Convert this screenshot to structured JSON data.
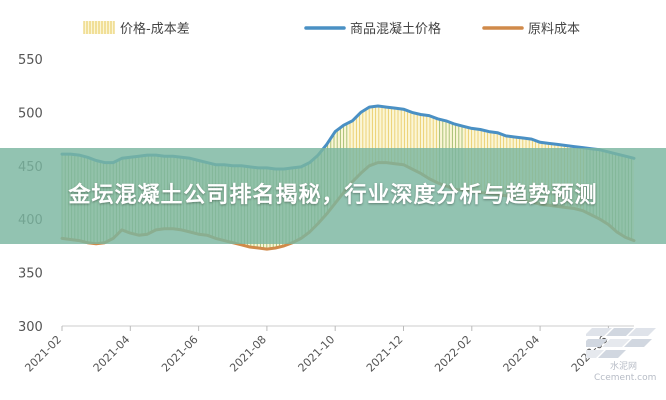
{
  "banner": {
    "title": "金坛混凝土公司排名揭秘，行业深度分析与趋势预测"
  },
  "watermark": {
    "line1": "水泥网",
    "line2": "Ccement.com"
  },
  "chart_data": {
    "type": "line",
    "title": "",
    "xlabel": "",
    "ylabel": "",
    "ylim": [
      300,
      550
    ],
    "yticks": [
      300,
      350,
      400,
      450,
      500,
      550
    ],
    "grid": false,
    "legend_position": "top",
    "x_tick_labels": [
      "2021-02",
      "2021-04",
      "2021-06",
      "2021-08",
      "2021-10",
      "2021-12",
      "2022-02",
      "2022-04",
      "2022-06"
    ],
    "x_tick_positions": [
      0,
      8,
      16,
      24,
      32,
      40,
      48,
      56,
      64
    ],
    "colors": {
      "concrete": "#4a90c4",
      "raw": "#d08a4a",
      "spread_fill": "#fbf6d6",
      "spread_hatch_low": "#8fb05a",
      "spread_hatch_high": "#e7c85a"
    },
    "series": [
      {
        "name": "商品混凝土价格",
        "key": "concrete",
        "values": [
          461,
          461,
          460,
          458,
          455,
          453,
          453,
          457,
          458,
          459,
          460,
          460,
          459,
          459,
          458,
          457,
          455,
          453,
          451,
          451,
          450,
          450,
          449,
          448,
          448,
          447,
          447,
          448,
          449,
          453,
          460,
          470,
          482,
          488,
          492,
          500,
          505,
          506,
          505,
          504,
          503,
          500,
          498,
          497,
          494,
          492,
          489,
          487,
          485,
          484,
          482,
          481,
          478,
          477,
          476,
          475,
          472,
          471,
          470,
          469,
          468,
          467,
          466,
          465,
          463,
          461,
          459,
          457
        ]
      },
      {
        "name": "原料成本",
        "key": "raw",
        "values": [
          382,
          381,
          380,
          378,
          377,
          378,
          382,
          390,
          387,
          385,
          386,
          390,
          391,
          391,
          390,
          388,
          386,
          385,
          382,
          380,
          378,
          376,
          374,
          373,
          372,
          373,
          375,
          378,
          382,
          388,
          396,
          405,
          415,
          425,
          435,
          443,
          450,
          453,
          453,
          452,
          451,
          447,
          443,
          438,
          434,
          431,
          428,
          427,
          426,
          425,
          424,
          423,
          422,
          420,
          418,
          416,
          414,
          413,
          412,
          411,
          410,
          408,
          404,
          400,
          395,
          388,
          383,
          380
        ]
      }
    ],
    "legend": [
      "价格-成本差",
      "商品混凝土价格",
      "原料成本"
    ]
  }
}
